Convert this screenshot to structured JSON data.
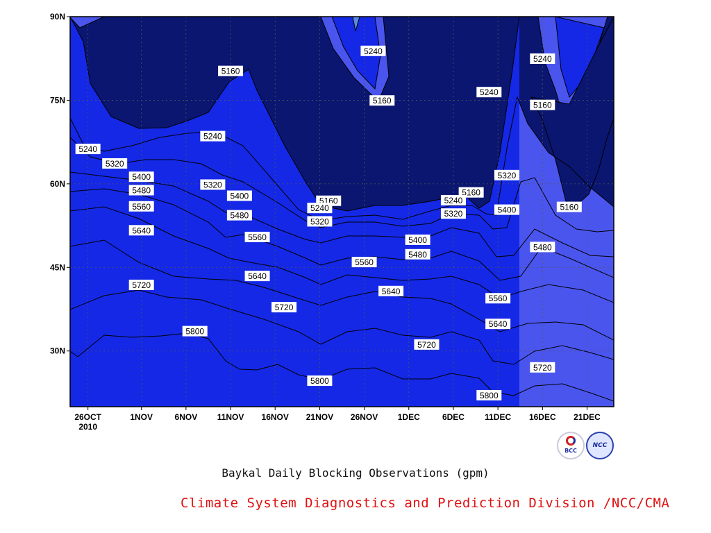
{
  "chart_data": {
    "type": "contour",
    "title": "Baykal Daily Blocking Observations (gpm)",
    "credit": "Climate System Diagnostics and Prediction Division /NCC/CMA",
    "x_axis": {
      "ticks": [
        "26OCT",
        "1NOV",
        "6NOV",
        "11NOV",
        "16NOV",
        "21NOV",
        "26NOV",
        "1DEC",
        "6DEC",
        "11DEC",
        "16DEC",
        "21DEC"
      ],
      "year_label": "2010",
      "range": [
        "2010-10-24",
        "2010-12-24"
      ]
    },
    "y_axis": {
      "ticks": [
        "30N",
        "45N",
        "60N",
        "75N",
        "90N"
      ],
      "tick_values": [
        30,
        45,
        60,
        75,
        90
      ],
      "range": [
        20,
        90
      ]
    },
    "grid": true,
    "levels": [
      5160,
      5240,
      5320,
      5400,
      5480,
      5560,
      5640,
      5720,
      5800
    ],
    "fill_colors": [
      "#0a1670",
      "#1428e6",
      "#4a55ee",
      "#5a8de0",
      "#5fc0ff",
      "#f9f878",
      "#fbe0a2",
      "#fba46a",
      "#fb7945",
      "#f47079"
    ],
    "contour_labels": [
      {
        "value": "5160",
        "date": "2010-11-11",
        "lat": 80.2
      },
      {
        "value": "5240",
        "date": "2010-10-26",
        "lat": 66.2
      },
      {
        "value": "5320",
        "date": "2010-10-29",
        "lat": 63.6
      },
      {
        "value": "5400",
        "date": "2010-11-01",
        "lat": 61.2
      },
      {
        "value": "5480",
        "date": "2010-11-01",
        "lat": 58.8
      },
      {
        "value": "5560",
        "date": "2010-11-01",
        "lat": 55.9
      },
      {
        "value": "5640",
        "date": "2010-11-01",
        "lat": 51.6
      },
      {
        "value": "5720",
        "date": "2010-11-01",
        "lat": 41.8
      },
      {
        "value": "5240",
        "date": "2010-11-09",
        "lat": 68.5
      },
      {
        "value": "5320",
        "date": "2010-11-09",
        "lat": 59.8
      },
      {
        "value": "5400",
        "date": "2010-11-12",
        "lat": 57.8
      },
      {
        "value": "5480",
        "date": "2010-11-12",
        "lat": 54.3
      },
      {
        "value": "5560",
        "date": "2010-11-14",
        "lat": 50.4
      },
      {
        "value": "5640",
        "date": "2010-11-14",
        "lat": 43.4
      },
      {
        "value": "5720",
        "date": "2010-11-17",
        "lat": 37.8
      },
      {
        "value": "5800",
        "date": "2010-11-07",
        "lat": 33.5
      },
      {
        "value": "5800",
        "date": "2010-11-21",
        "lat": 24.6
      },
      {
        "value": "5160",
        "date": "2010-11-22",
        "lat": 56.9
      },
      {
        "value": "5240",
        "date": "2010-11-21",
        "lat": 55.6
      },
      {
        "value": "5320",
        "date": "2010-11-21",
        "lat": 53.2
      },
      {
        "value": "5240",
        "date": "2010-11-27",
        "lat": 83.8
      },
      {
        "value": "5160",
        "date": "2010-11-28",
        "lat": 74.9
      },
      {
        "value": "5560",
        "date": "2010-11-26",
        "lat": 45.9
      },
      {
        "value": "5640",
        "date": "2010-11-29",
        "lat": 40.7
      },
      {
        "value": "5400",
        "date": "2010-12-02",
        "lat": 49.9
      },
      {
        "value": "5480",
        "date": "2010-12-02",
        "lat": 47.3
      },
      {
        "value": "5720",
        "date": "2010-12-03",
        "lat": 31.1
      },
      {
        "value": "5160",
        "date": "2010-12-08",
        "lat": 58.4
      },
      {
        "value": "5240",
        "date": "2010-12-06",
        "lat": 57.0
      },
      {
        "value": "5320",
        "date": "2010-12-06",
        "lat": 54.6
      },
      {
        "value": "5240",
        "date": "2010-12-10",
        "lat": 76.4
      },
      {
        "value": "5320",
        "date": "2010-12-12",
        "lat": 61.5
      },
      {
        "value": "5400",
        "date": "2010-12-12",
        "lat": 55.3
      },
      {
        "value": "5560",
        "date": "2010-12-11",
        "lat": 39.4
      },
      {
        "value": "5640",
        "date": "2010-12-11",
        "lat": 34.8
      },
      {
        "value": "5800",
        "date": "2010-12-10",
        "lat": 22.0
      },
      {
        "value": "5480",
        "date": "2010-12-16",
        "lat": 48.6
      },
      {
        "value": "5720",
        "date": "2010-12-16",
        "lat": 27.0
      },
      {
        "value": "5240",
        "date": "2010-12-16",
        "lat": 82.4
      },
      {
        "value": "5160",
        "date": "2010-12-16",
        "lat": 74.1
      },
      {
        "value": "5160",
        "date": "2010-12-19",
        "lat": 55.8
      }
    ]
  }
}
